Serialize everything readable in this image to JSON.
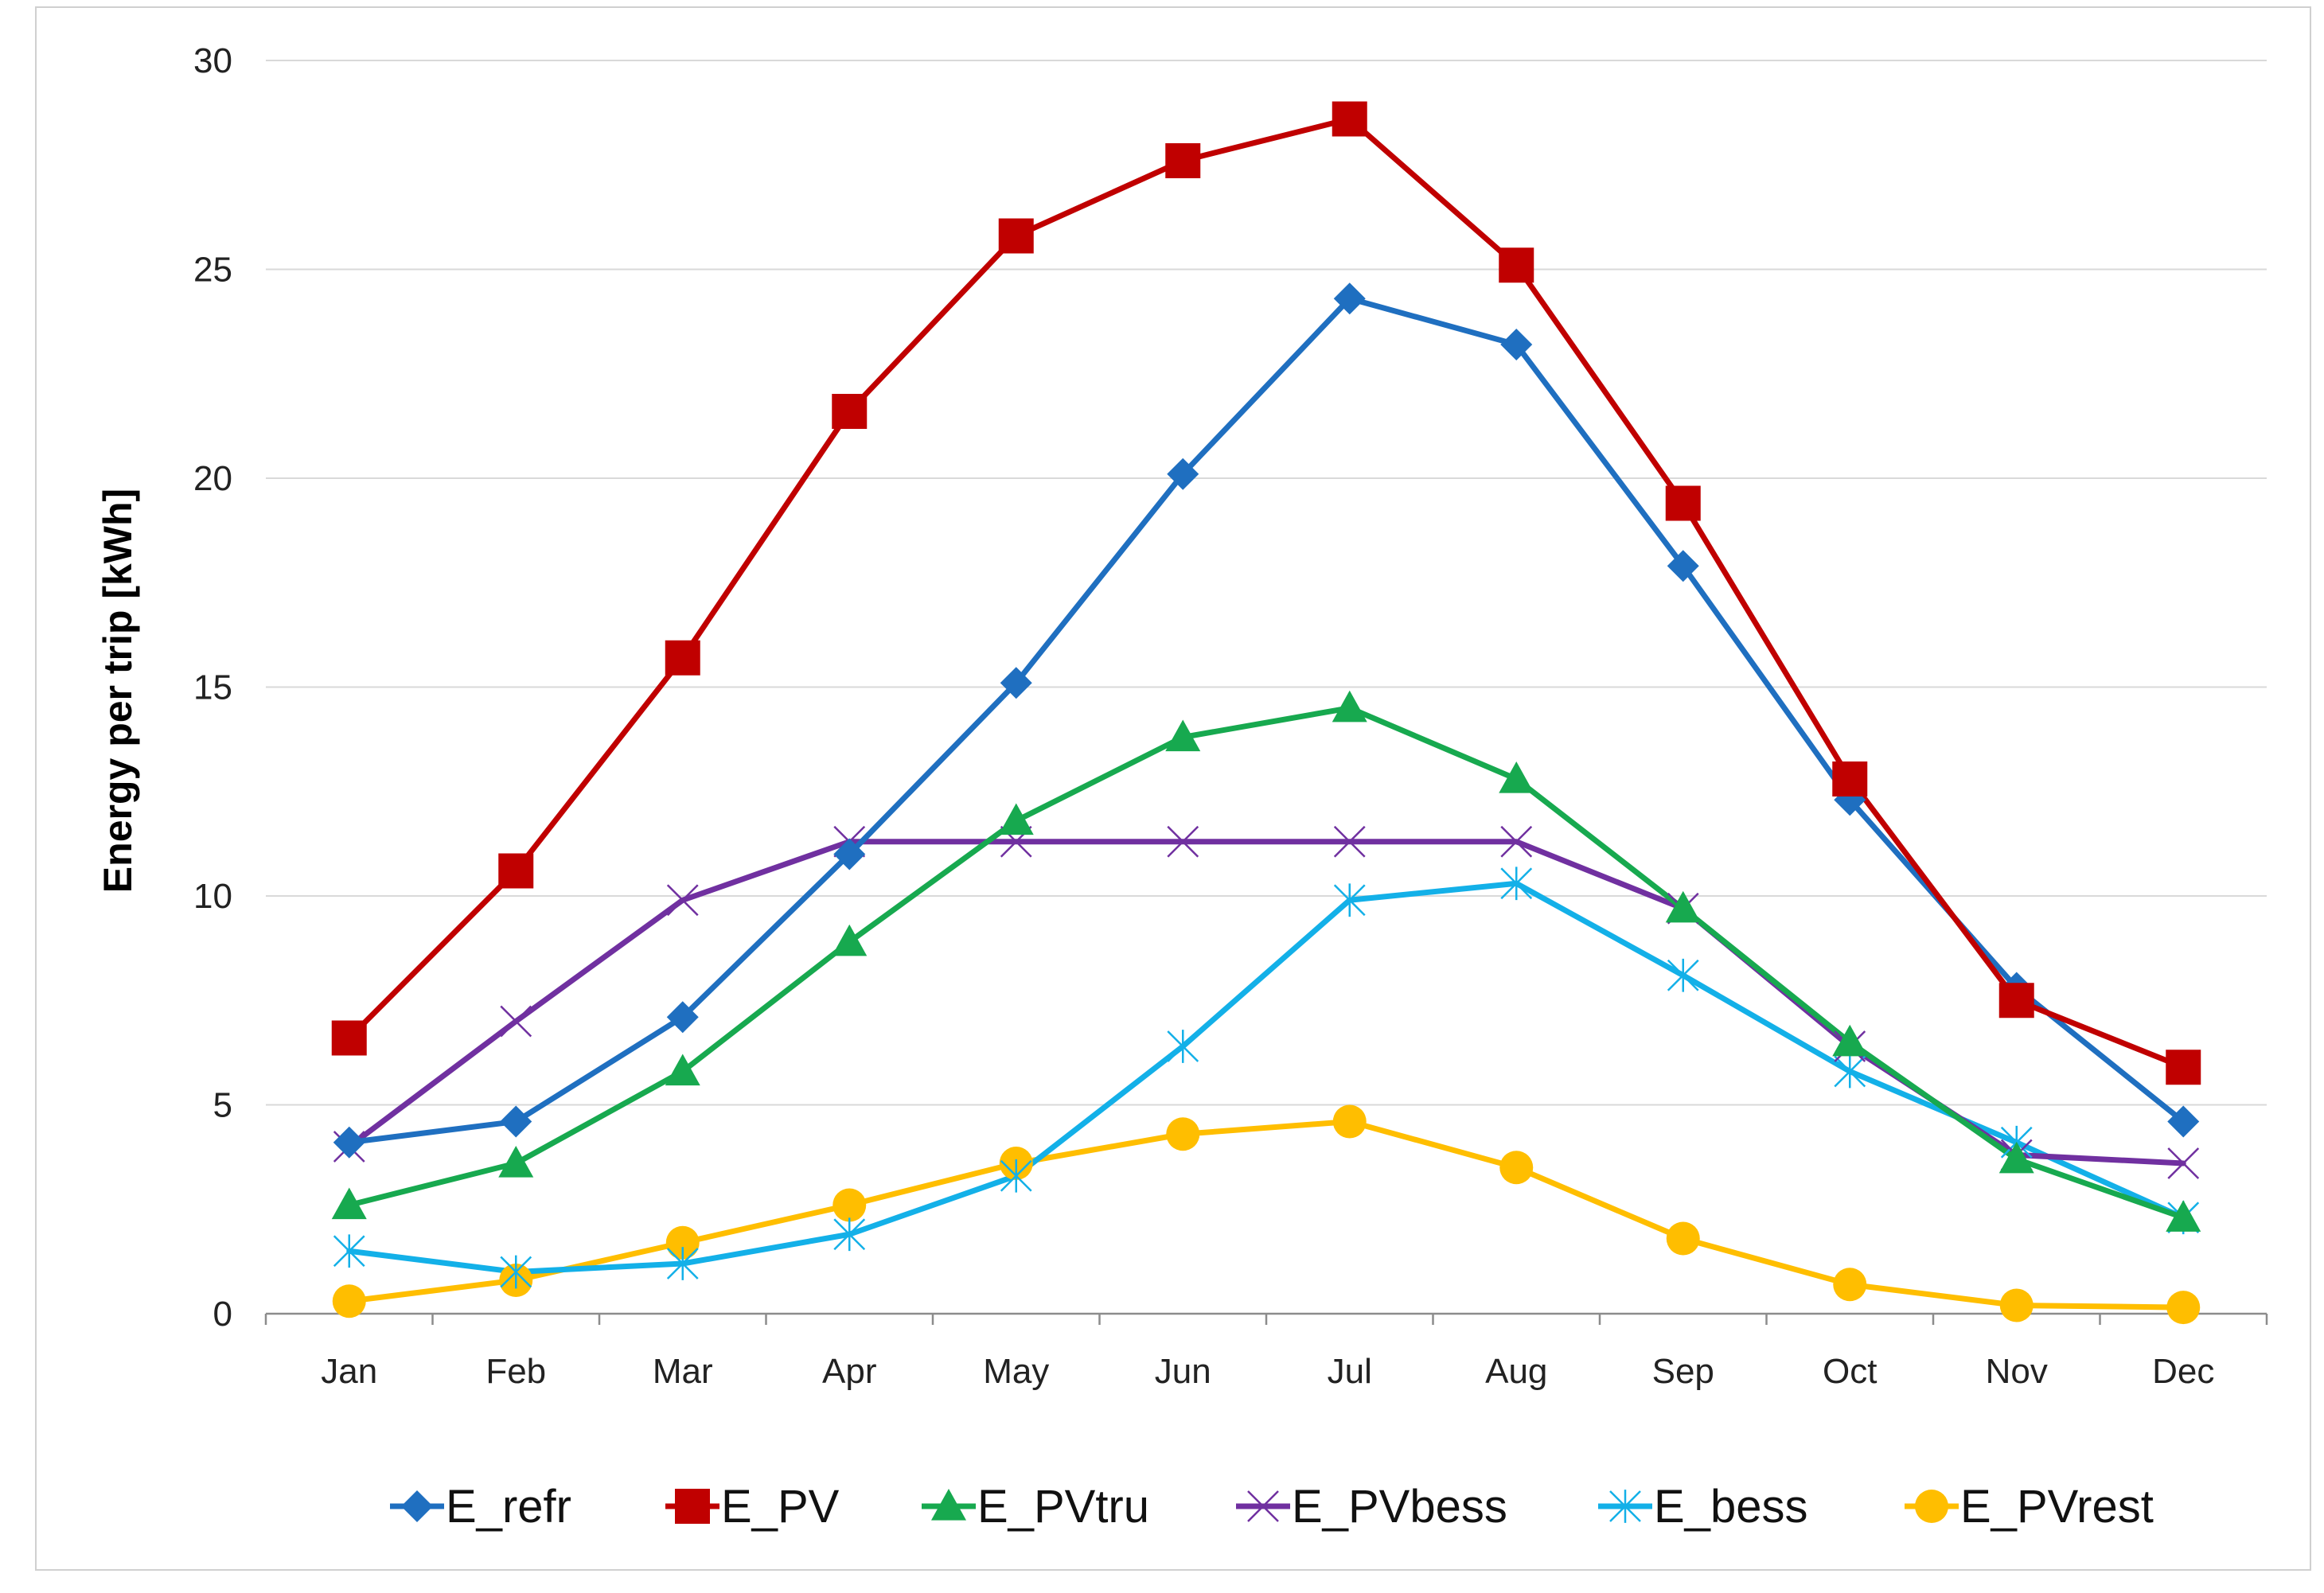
{
  "chart_data": {
    "type": "line",
    "title": "",
    "xlabel": "",
    "ylabel": "Energy per trip [kWh]",
    "ylim": [
      0,
      30
    ],
    "yticks": [
      0,
      5,
      10,
      15,
      20,
      25,
      30
    ],
    "grid": true,
    "legend_position": "bottom",
    "categories": [
      "Jan",
      "Feb",
      "Mar",
      "Apr",
      "May",
      "Jun",
      "Jul",
      "Aug",
      "Sep",
      "Oct",
      "Nov",
      "Dec"
    ],
    "series": [
      {
        "name": "E_refr",
        "color": "#1F6FC0",
        "marker": "diamond",
        "values": [
          4.1,
          4.6,
          7.1,
          11.0,
          15.1,
          20.1,
          24.3,
          23.2,
          17.9,
          12.3,
          7.8,
          4.6
        ]
      },
      {
        "name": "E_PV",
        "color": "#C00000",
        "marker": "square",
        "values": [
          6.6,
          10.6,
          15.7,
          21.6,
          25.8,
          27.6,
          28.6,
          25.1,
          19.4,
          12.8,
          7.5,
          5.9
        ]
      },
      {
        "name": "E_PVtru",
        "color": "#17A94F",
        "marker": "triangle",
        "values": [
          2.6,
          3.6,
          5.8,
          8.9,
          11.8,
          13.8,
          14.5,
          12.8,
          9.7,
          6.5,
          3.7,
          2.3
        ]
      },
      {
        "name": "E_PVbess",
        "color": "#7030A0",
        "marker": "x",
        "values": [
          4.0,
          7.0,
          9.9,
          11.3,
          11.3,
          11.3,
          11.3,
          11.3,
          9.7,
          6.4,
          3.8,
          3.6
        ]
      },
      {
        "name": "E_bess",
        "color": "#13B0E8",
        "marker": "asterisk",
        "values": [
          1.5,
          1.0,
          1.2,
          1.9,
          3.3,
          6.4,
          9.9,
          10.3,
          8.1,
          5.8,
          4.1,
          2.3
        ]
      },
      {
        "name": "E_PVrest",
        "color": "#FFBE00",
        "marker": "circle",
        "values": [
          0.3,
          0.8,
          1.7,
          2.6,
          3.6,
          4.3,
          4.6,
          3.5,
          1.8,
          0.7,
          0.2,
          0.15
        ]
      }
    ]
  }
}
